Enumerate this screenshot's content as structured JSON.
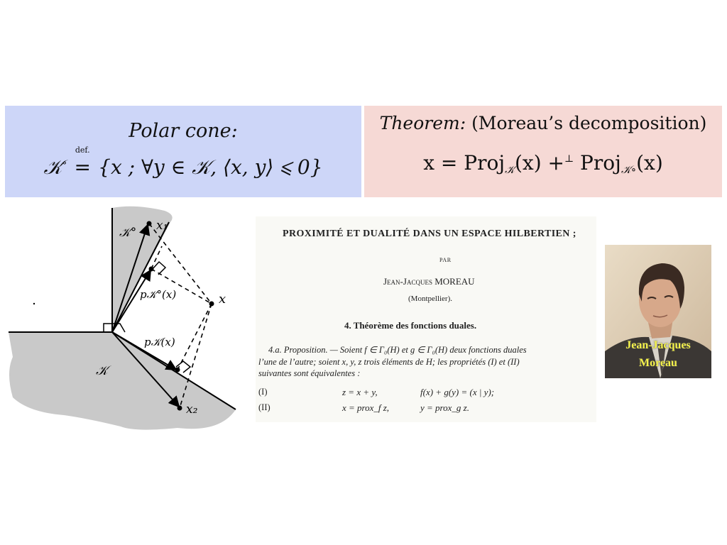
{
  "definition": {
    "heading": "Polar cone:",
    "formula": {
      "lhs": "𝒦",
      "lhs_sup": "∘",
      "defeq_top": "def.",
      "defeq": "=",
      "rhs": "{x ; ∀y ∈ 𝒦, ⟨x, y⟩ ⩽ 0}"
    }
  },
  "theorem": {
    "label": "Theorem:",
    "name": "(Moreau’s decomposition)",
    "formula": {
      "lhs": "x = Proj",
      "sub1": "𝒦",
      "mid": "(x) +",
      "perp": "⊥",
      "proj2": " Proj",
      "sub2": "𝒦∘",
      "end": "(x)"
    }
  },
  "figure": {
    "labels": {
      "polar_cone": "𝒦°",
      "cone": "𝒦",
      "x1": "x₁",
      "x2": "x₂",
      "x": "x",
      "p_polar": "p𝒦°(x)",
      "p_cone": "p𝒦(x)"
    }
  },
  "paper_excerpt": {
    "title": "PROXIMITÉ ET DUALITÉ DANS UN ESPACE HILBERTIEN ;",
    "par": "PAR",
    "author": "Jean-Jacques MOREAU",
    "affiliation": "(Montpellier).",
    "section": "4. Théorème des fonctions duales.",
    "prop_line1": "4.a. Proposition. — Soient f ∈ Γ₀(H) et g ∈ Γ₀(H) deux fonctions duales",
    "prop_line2": "l’une de l’autre; soient x, y, z trois éléments de H; les propriétés (I) et (II)",
    "prop_line3": "suivantes sont équivalentes :",
    "eq1_label": "(I)",
    "eq1_a": "z = x + y,",
    "eq1_b": "f(x) + g(y) = (x | y);",
    "eq2_label": "(II)",
    "eq2_a": "x = prox_f z,",
    "eq2_b": "y = prox_g z."
  },
  "photo": {
    "caption_line1": "Jean-Jacques",
    "caption_line2": "Moreau"
  }
}
